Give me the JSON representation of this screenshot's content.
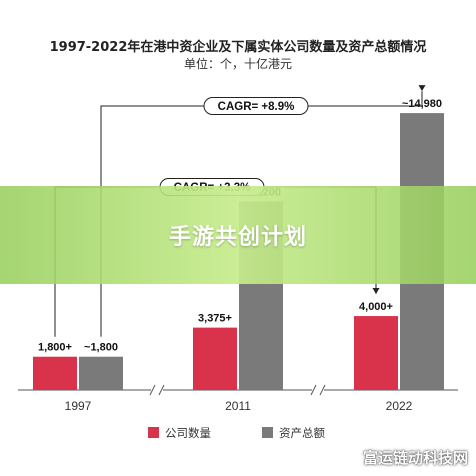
{
  "header": {
    "title": "1997-2022年在港中资企业及下属实体公司数量及资产总额情况",
    "subtitle": "单位：个，十亿港元"
  },
  "overlay": {
    "banner_text": "手游共创计划",
    "watermark": "富运链动科技网"
  },
  "chart_data": {
    "type": "bar",
    "title": "1997-2022年在港中资企业及下属实体公司数量及资产总额情况",
    "subtitle": "单位：个，十亿港元",
    "categories": [
      "1997",
      "2011",
      "2022"
    ],
    "series": [
      {
        "name": "公司数量",
        "values": [
          1800,
          3375,
          4000
        ],
        "labels": [
          "1,800+",
          "3,375+",
          "4,000+"
        ],
        "color": "#d8334a"
      },
      {
        "name": "资产总额",
        "values": [
          1800,
          10200,
          14980
        ],
        "labels": [
          "~1,800",
          "~10,200",
          "~14,980"
        ],
        "color": "#7a7a7a"
      }
    ],
    "ylim": [
      0,
      16500
    ],
    "annotations": [
      {
        "text": "CAGR= +8.9%",
        "from": "1997",
        "to": "2022",
        "series": "资产总额"
      },
      {
        "text": "CAGR= +3.3%",
        "from": "1997",
        "to": "2022",
        "series": "公司数量"
      }
    ],
    "legend_position": "bottom",
    "axis_breaks": true,
    "grid": false
  }
}
